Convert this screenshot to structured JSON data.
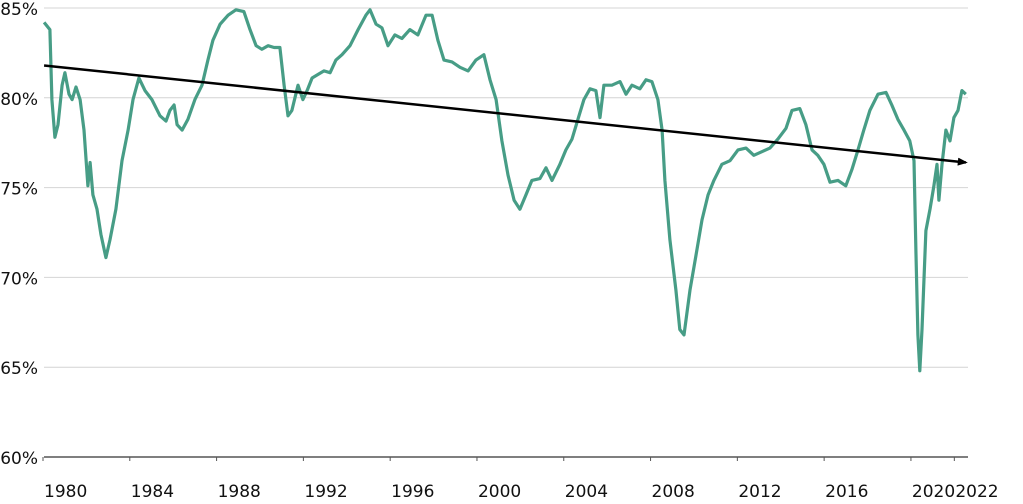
{
  "chart_data": {
    "type": "line",
    "x": [
      1980.05,
      1980.32,
      1980.41,
      1980.55,
      1980.69,
      1980.88,
      1981.01,
      1981.2,
      1981.34,
      1981.52,
      1981.71,
      1981.89,
      1982.07,
      1982.17,
      1982.3,
      1982.49,
      1982.67,
      1982.9,
      1983.09,
      1983.36,
      1983.64,
      1983.92,
      1984.15,
      1984.42,
      1984.7,
      1985.02,
      1985.39,
      1985.67,
      1985.85,
      1986.04,
      1986.18,
      1986.41,
      1986.68,
      1987.0,
      1987.33,
      1987.6,
      1987.83,
      1988.16,
      1988.53,
      1988.89,
      1989.26,
      1989.54,
      1989.82,
      1990.09,
      1990.37,
      1990.65,
      1990.92,
      1991.11,
      1991.29,
      1991.47,
      1991.75,
      1991.98,
      1992.17,
      1992.4,
      1992.67,
      1992.95,
      1993.23,
      1993.5,
      1993.78,
      1994.15,
      1994.52,
      1994.88,
      1995.07,
      1995.35,
      1995.62,
      1995.9,
      1996.22,
      1996.54,
      1996.91,
      1997.28,
      1997.65,
      1997.93,
      1998.2,
      1998.48,
      1998.85,
      1999.22,
      1999.59,
      1999.95,
      2000.32,
      2000.6,
      2000.88,
      2001.15,
      2001.43,
      2001.71,
      2001.98,
      2002.26,
      2002.53,
      2002.9,
      2003.18,
      2003.46,
      2003.82,
      2004.1,
      2004.38,
      2004.65,
      2004.93,
      2005.21,
      2005.48,
      2005.67,
      2005.85,
      2006.22,
      2006.59,
      2006.87,
      2007.14,
      2007.51,
      2007.79,
      2008.06,
      2008.34,
      2008.53,
      2008.66,
      2008.89,
      2009.17,
      2009.35,
      2009.54,
      2009.82,
      2010.09,
      2010.37,
      2010.65,
      2010.92,
      2011.29,
      2011.66,
      2012.03,
      2012.4,
      2012.76,
      2013.13,
      2013.5,
      2013.87,
      2014.24,
      2014.52,
      2014.88,
      2015.16,
      2015.44,
      2015.71,
      2015.99,
      2016.27,
      2016.64,
      2017.0,
      2017.28,
      2017.56,
      2017.83,
      2018.11,
      2018.48,
      2018.85,
      2019.12,
      2019.4,
      2019.68,
      2019.95,
      2020.14,
      2020.23,
      2020.32,
      2020.41,
      2020.51,
      2020.69,
      2020.88,
      2021.06,
      2021.2,
      2021.29,
      2021.43,
      2021.61,
      2021.8,
      2021.98,
      2022.17,
      2022.35,
      2022.53
    ],
    "values": [
      84.2,
      83.8,
      79.9,
      77.8,
      78.5,
      80.7,
      81.4,
      80.2,
      79.9,
      80.6,
      79.9,
      78.2,
      75.1,
      76.4,
      74.6,
      73.8,
      72.4,
      71.1,
      72.1,
      73.8,
      76.5,
      78.2,
      79.9,
      81.1,
      80.4,
      79.9,
      79.0,
      78.7,
      79.3,
      79.6,
      78.5,
      78.2,
      78.8,
      79.9,
      80.7,
      82.1,
      83.2,
      84.1,
      84.6,
      84.9,
      84.8,
      83.8,
      82.9,
      82.7,
      82.9,
      82.8,
      82.8,
      80.7,
      79.0,
      79.3,
      80.7,
      79.9,
      80.4,
      81.1,
      81.3,
      81.5,
      81.4,
      82.1,
      82.4,
      82.9,
      83.8,
      84.6,
      84.9,
      84.1,
      83.9,
      82.9,
      83.5,
      83.3,
      83.8,
      83.5,
      84.6,
      84.6,
      83.2,
      82.1,
      82.0,
      81.7,
      81.5,
      82.1,
      82.4,
      81.0,
      79.9,
      77.6,
      75.7,
      74.3,
      73.8,
      74.6,
      75.4,
      75.5,
      76.1,
      75.4,
      76.3,
      77.1,
      77.7,
      78.8,
      79.9,
      80.5,
      80.4,
      78.9,
      80.7,
      80.7,
      80.9,
      80.2,
      80.7,
      80.5,
      81.0,
      80.9,
      79.9,
      78.2,
      75.4,
      72.1,
      69.3,
      67.1,
      66.8,
      69.3,
      71.2,
      73.2,
      74.6,
      75.4,
      76.3,
      76.5,
      77.1,
      77.2,
      76.8,
      77.0,
      77.2,
      77.7,
      78.3,
      79.3,
      79.4,
      78.5,
      77.1,
      76.8,
      76.3,
      75.3,
      75.4,
      75.1,
      76.0,
      77.1,
      78.2,
      79.3,
      80.2,
      80.3,
      79.6,
      78.8,
      78.2,
      77.6,
      76.5,
      71.5,
      66.8,
      64.8,
      67.1,
      72.6,
      73.8,
      75.1,
      76.3,
      74.3,
      76.3,
      78.2,
      77.6,
      78.9,
      79.3,
      80.4,
      80.2
    ],
    "color": "#479d86",
    "trend": {
      "x": [
        1980.05,
        2022.53
      ],
      "values": [
        81.8,
        76.4
      ],
      "color": "#000000"
    },
    "xlim": [
      1980,
      2022.63
    ],
    "xticks": [
      1980,
      1984,
      1988,
      1992,
      1996,
      2000,
      2004,
      2008,
      2012,
      2016,
      2020,
      2022
    ],
    "ylim": [
      60,
      85
    ],
    "yticks": [
      {
        "value": 60,
        "label": "60%"
      },
      {
        "value": 65,
        "label": "65%"
      },
      {
        "value": 70,
        "label": "70%"
      },
      {
        "value": 75,
        "label": "75%"
      },
      {
        "value": 80,
        "label": "80%"
      },
      {
        "value": 85,
        "label": "85%"
      }
    ],
    "grid": true
  }
}
